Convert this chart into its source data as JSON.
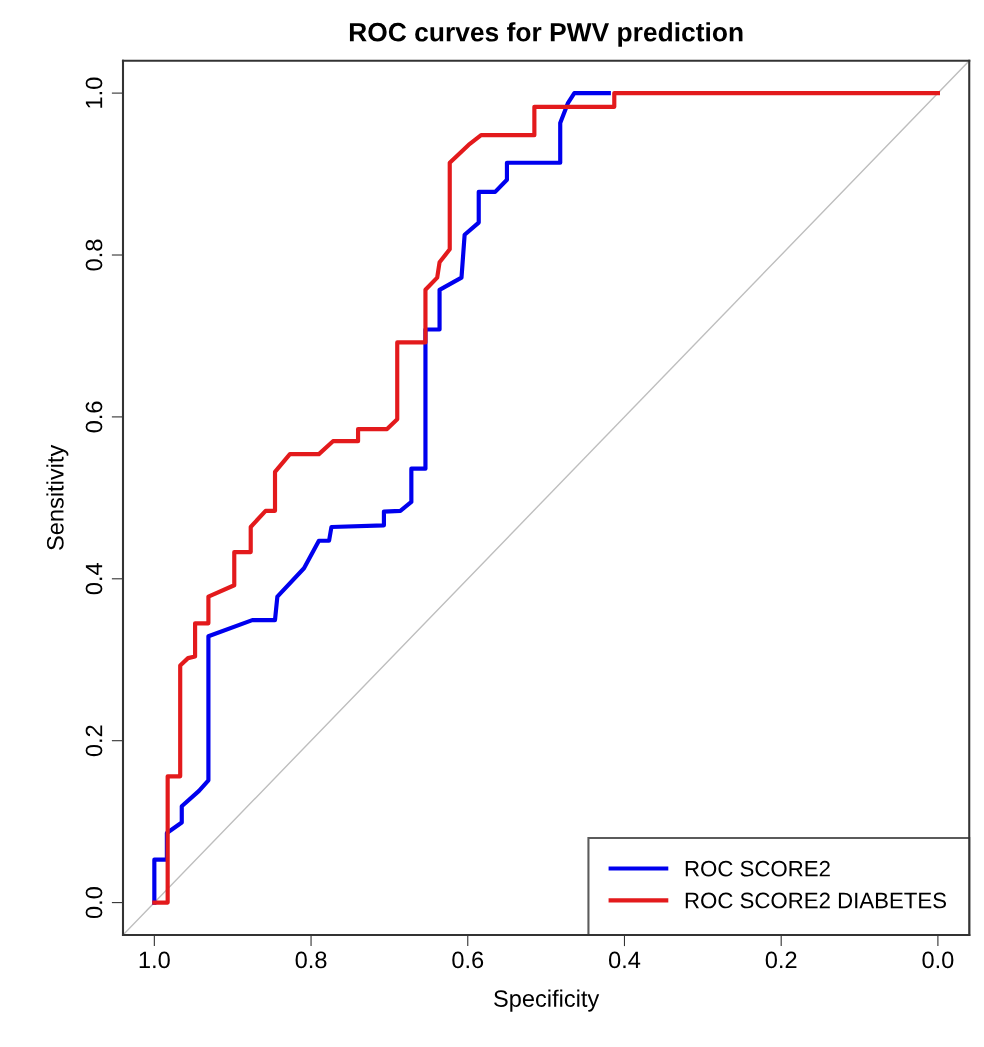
{
  "chart_data": {
    "type": "line",
    "title": "ROC curves for PWV prediction",
    "xlabel": "Specificity",
    "ylabel": "Sensitivity",
    "xlim": [
      1.04,
      -0.04
    ],
    "ylim": [
      -0.04,
      1.04
    ],
    "xticks": [
      {
        "value": 1,
        "label": "1.0"
      },
      0.8,
      0.6,
      0.4,
      0.2,
      {
        "value": 0,
        "label": "0.0"
      }
    ],
    "yticks": [
      {
        "value": 0,
        "label": "0.0"
      },
      0.2,
      0.4,
      0.6,
      0.8,
      {
        "value": 1,
        "label": "1.0"
      }
    ],
    "grid": false,
    "legend": "bottom right",
    "line_style": "solid",
    "marker": "none",
    "series": [
      {
        "color": "#bebebe",
        "x": [
          1.04,
          -0.04
        ],
        "values": [
          -0.04,
          1.04
        ]
      },
      {
        "name": "ROC SCORE2",
        "color": "#0000ee",
        "x": [
          1.0,
          1.0,
          0.984,
          0.984,
          0.965,
          0.965,
          0.943,
          0.931,
          0.931,
          0.875,
          0.846,
          0.843,
          0.809,
          0.79,
          0.777,
          0.774,
          0.707,
          0.707,
          0.686,
          0.672,
          0.672,
          0.654,
          0.654,
          0.636,
          0.636,
          0.608,
          0.604,
          0.586,
          0.586,
          0.565,
          0.55,
          0.55,
          0.482,
          0.482,
          0.472,
          0.464,
          0.42
        ],
        "values": [
          0.0,
          0.053,
          0.053,
          0.086,
          0.099,
          0.119,
          0.138,
          0.151,
          0.329,
          0.349,
          0.349,
          0.378,
          0.413,
          0.447,
          0.447,
          0.464,
          0.466,
          0.483,
          0.484,
          0.495,
          0.536,
          0.536,
          0.708,
          0.708,
          0.757,
          0.772,
          0.825,
          0.84,
          0.878,
          0.878,
          0.893,
          0.914,
          0.914,
          0.963,
          0.988,
          1.0,
          1.0
        ]
      },
      {
        "name": "ROC SCORE2 DIABETES",
        "color": "#e31a1c",
        "x": [
          1.0,
          0.983,
          0.983,
          0.967,
          0.967,
          0.957,
          0.948,
          0.948,
          0.931,
          0.931,
          0.898,
          0.898,
          0.877,
          0.877,
          0.858,
          0.846,
          0.846,
          0.827,
          0.79,
          0.772,
          0.74,
          0.74,
          0.703,
          0.69,
          0.69,
          0.654,
          0.654,
          0.639,
          0.636,
          0.623,
          0.623,
          0.599,
          0.583,
          0.515,
          0.515,
          0.413,
          0.413,
          0.0
        ],
        "values": [
          0.0,
          0.0,
          0.156,
          0.156,
          0.293,
          0.302,
          0.304,
          0.345,
          0.345,
          0.378,
          0.392,
          0.433,
          0.433,
          0.464,
          0.484,
          0.484,
          0.532,
          0.554,
          0.554,
          0.57,
          0.57,
          0.585,
          0.585,
          0.597,
          0.692,
          0.692,
          0.757,
          0.772,
          0.791,
          0.807,
          0.914,
          0.936,
          0.948,
          0.948,
          0.983,
          0.983,
          1.0,
          1.0
        ]
      }
    ]
  }
}
